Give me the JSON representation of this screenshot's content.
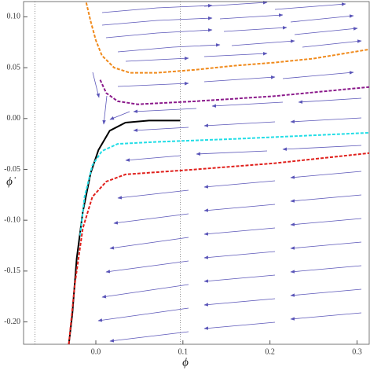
{
  "chart_data": {
    "type": "line",
    "xlabel": "ϕ",
    "ylabel": "ϕ̇",
    "xlim": [
      -0.083,
      0.314
    ],
    "ylim": [
      -0.222,
      0.115
    ],
    "xticks": [
      {
        "value": 0,
        "label": "0.0"
      },
      {
        "value": 0.1,
        "label": "0.1"
      },
      {
        "value": 0.2,
        "label": "0.2"
      },
      {
        "value": 0.3,
        "label": "0.3"
      }
    ],
    "yticks": [
      {
        "value": 0.1,
        "label": "0.10"
      },
      {
        "value": 0.05,
        "label": "0.05"
      },
      {
        "value": 0,
        "label": "0.00"
      },
      {
        "value": -0.05,
        "label": "-0.05"
      },
      {
        "value": -0.1,
        "label": "-0.10"
      },
      {
        "value": -0.15,
        "label": "-0.15"
      },
      {
        "value": -0.2,
        "label": "-0.20"
      }
    ],
    "vlines": [
      -0.07,
      0.097
    ],
    "series": [
      {
        "color": "#f08a1c",
        "dashed": true,
        "x": [
          -0.011,
          -0.006,
          0.0,
          0.007,
          0.021,
          0.039,
          0.07,
          0.115,
          0.16,
          0.205,
          0.25,
          0.314
        ],
        "values": [
          0.114,
          0.096,
          0.077,
          0.062,
          0.05,
          0.045,
          0.045,
          0.048,
          0.052,
          0.055,
          0.059,
          0.068
        ]
      },
      {
        "color": "#8b1a8b",
        "dashed": true,
        "x": [
          0.005,
          0.012,
          0.025,
          0.048,
          0.115,
          0.205,
          0.314
        ],
        "values": [
          0.038,
          0.025,
          0.017,
          0.014,
          0.017,
          0.022,
          0.031
        ]
      },
      {
        "color": "#000000",
        "dashed": false,
        "x": [
          -0.031,
          -0.027,
          -0.022,
          -0.015,
          -0.006,
          0.003,
          0.016,
          0.034,
          0.061,
          0.097
        ],
        "values": [
          -0.222,
          -0.192,
          -0.138,
          -0.092,
          -0.054,
          -0.031,
          -0.012,
          -0.004,
          -0.002,
          -0.002
        ]
      },
      {
        "color": "#22dde6",
        "dashed": true,
        "x": [
          -0.018,
          -0.013,
          -0.004,
          0.007,
          0.025,
          0.07,
          0.16,
          0.314
        ],
        "values": [
          -0.115,
          -0.077,
          -0.046,
          -0.032,
          -0.025,
          -0.023,
          -0.02,
          -0.014
        ]
      },
      {
        "color": "#e0201c",
        "dashed": true,
        "x": [
          -0.031,
          -0.024,
          -0.015,
          -0.004,
          0.012,
          0.034,
          0.115,
          0.205,
          0.314
        ],
        "values": [
          -0.222,
          -0.162,
          -0.108,
          -0.077,
          -0.062,
          -0.055,
          -0.05,
          -0.044,
          -0.034
        ]
      }
    ]
  }
}
